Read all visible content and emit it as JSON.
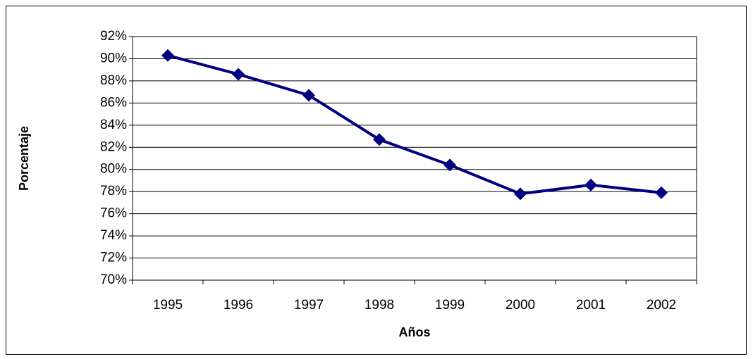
{
  "chart_data": {
    "type": "line",
    "x_label": "Años",
    "y_label": "Porcentaje",
    "categories": [
      "1995",
      "1996",
      "1997",
      "1998",
      "1999",
      "2000",
      "2001",
      "2002"
    ],
    "series": [
      {
        "color": "#000080",
        "values": [
          90.3,
          88.6,
          86.7,
          82.7,
          80.4,
          77.8,
          78.6,
          77.9
        ]
      }
    ],
    "ylim": [
      70,
      92
    ],
    "yticks": [
      {
        "value": 70,
        "label": "70%"
      },
      {
        "value": 72,
        "label": "72%"
      },
      {
        "value": 74,
        "label": "74%"
      },
      {
        "value": 76,
        "label": "76%"
      },
      {
        "value": 78,
        "label": "78%"
      },
      {
        "value": 80,
        "label": "80%"
      },
      {
        "value": 82,
        "label": "82%"
      },
      {
        "value": 84,
        "label": "84%"
      },
      {
        "value": 86,
        "label": "86%"
      },
      {
        "value": 88,
        "label": "88%"
      },
      {
        "value": 90,
        "label": "90%"
      },
      {
        "value": 92,
        "label": "92%"
      }
    ],
    "grid": true
  }
}
